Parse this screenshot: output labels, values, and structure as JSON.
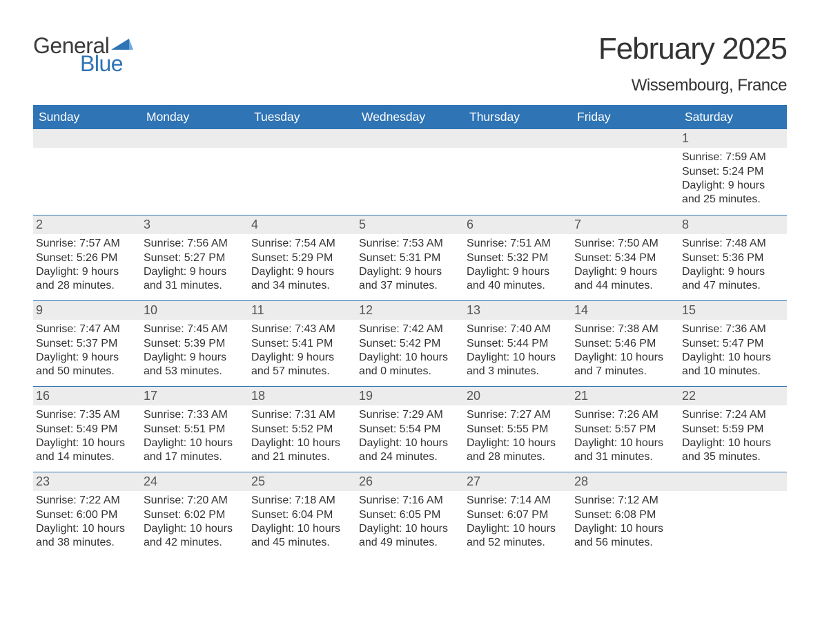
{
  "brand": {
    "text1": "General",
    "text2": "Blue",
    "accent_color": "#2f74b5"
  },
  "title": "February 2025",
  "location": "Wissembourg, France",
  "colors": {
    "header_bg": "#2f74b5",
    "header_text": "#ffffff",
    "daynum_bg": "#ececec",
    "row_divider": "#2f74b5",
    "body_text": "#333333",
    "page_bg": "#ffffff"
  },
  "typography": {
    "title_fontsize": 44,
    "location_fontsize": 24,
    "header_fontsize": 17.5,
    "body_fontsize": 16
  },
  "layout": {
    "columns": 7,
    "rows": 5
  },
  "weekdays": [
    "Sunday",
    "Monday",
    "Tuesday",
    "Wednesday",
    "Thursday",
    "Friday",
    "Saturday"
  ],
  "labels": {
    "sunrise": "Sunrise: ",
    "sunset": "Sunset: ",
    "daylight": "Daylight: "
  },
  "weeks": [
    [
      null,
      null,
      null,
      null,
      null,
      null,
      {
        "d": "1",
        "sunrise": "7:59 AM",
        "sunset": "5:24 PM",
        "daylight": "9 hours and 25 minutes."
      }
    ],
    [
      {
        "d": "2",
        "sunrise": "7:57 AM",
        "sunset": "5:26 PM",
        "daylight": "9 hours and 28 minutes."
      },
      {
        "d": "3",
        "sunrise": "7:56 AM",
        "sunset": "5:27 PM",
        "daylight": "9 hours and 31 minutes."
      },
      {
        "d": "4",
        "sunrise": "7:54 AM",
        "sunset": "5:29 PM",
        "daylight": "9 hours and 34 minutes."
      },
      {
        "d": "5",
        "sunrise": "7:53 AM",
        "sunset": "5:31 PM",
        "daylight": "9 hours and 37 minutes."
      },
      {
        "d": "6",
        "sunrise": "7:51 AM",
        "sunset": "5:32 PM",
        "daylight": "9 hours and 40 minutes."
      },
      {
        "d": "7",
        "sunrise": "7:50 AM",
        "sunset": "5:34 PM",
        "daylight": "9 hours and 44 minutes."
      },
      {
        "d": "8",
        "sunrise": "7:48 AM",
        "sunset": "5:36 PM",
        "daylight": "9 hours and 47 minutes."
      }
    ],
    [
      {
        "d": "9",
        "sunrise": "7:47 AM",
        "sunset": "5:37 PM",
        "daylight": "9 hours and 50 minutes."
      },
      {
        "d": "10",
        "sunrise": "7:45 AM",
        "sunset": "5:39 PM",
        "daylight": "9 hours and 53 minutes."
      },
      {
        "d": "11",
        "sunrise": "7:43 AM",
        "sunset": "5:41 PM",
        "daylight": "9 hours and 57 minutes."
      },
      {
        "d": "12",
        "sunrise": "7:42 AM",
        "sunset": "5:42 PM",
        "daylight": "10 hours and 0 minutes."
      },
      {
        "d": "13",
        "sunrise": "7:40 AM",
        "sunset": "5:44 PM",
        "daylight": "10 hours and 3 minutes."
      },
      {
        "d": "14",
        "sunrise": "7:38 AM",
        "sunset": "5:46 PM",
        "daylight": "10 hours and 7 minutes."
      },
      {
        "d": "15",
        "sunrise": "7:36 AM",
        "sunset": "5:47 PM",
        "daylight": "10 hours and 10 minutes."
      }
    ],
    [
      {
        "d": "16",
        "sunrise": "7:35 AM",
        "sunset": "5:49 PM",
        "daylight": "10 hours and 14 minutes."
      },
      {
        "d": "17",
        "sunrise": "7:33 AM",
        "sunset": "5:51 PM",
        "daylight": "10 hours and 17 minutes."
      },
      {
        "d": "18",
        "sunrise": "7:31 AM",
        "sunset": "5:52 PM",
        "daylight": "10 hours and 21 minutes."
      },
      {
        "d": "19",
        "sunrise": "7:29 AM",
        "sunset": "5:54 PM",
        "daylight": "10 hours and 24 minutes."
      },
      {
        "d": "20",
        "sunrise": "7:27 AM",
        "sunset": "5:55 PM",
        "daylight": "10 hours and 28 minutes."
      },
      {
        "d": "21",
        "sunrise": "7:26 AM",
        "sunset": "5:57 PM",
        "daylight": "10 hours and 31 minutes."
      },
      {
        "d": "22",
        "sunrise": "7:24 AM",
        "sunset": "5:59 PM",
        "daylight": "10 hours and 35 minutes."
      }
    ],
    [
      {
        "d": "23",
        "sunrise": "7:22 AM",
        "sunset": "6:00 PM",
        "daylight": "10 hours and 38 minutes."
      },
      {
        "d": "24",
        "sunrise": "7:20 AM",
        "sunset": "6:02 PM",
        "daylight": "10 hours and 42 minutes."
      },
      {
        "d": "25",
        "sunrise": "7:18 AM",
        "sunset": "6:04 PM",
        "daylight": "10 hours and 45 minutes."
      },
      {
        "d": "26",
        "sunrise": "7:16 AM",
        "sunset": "6:05 PM",
        "daylight": "10 hours and 49 minutes."
      },
      {
        "d": "27",
        "sunrise": "7:14 AM",
        "sunset": "6:07 PM",
        "daylight": "10 hours and 52 minutes."
      },
      {
        "d": "28",
        "sunrise": "7:12 AM",
        "sunset": "6:08 PM",
        "daylight": "10 hours and 56 minutes."
      },
      null
    ]
  ]
}
